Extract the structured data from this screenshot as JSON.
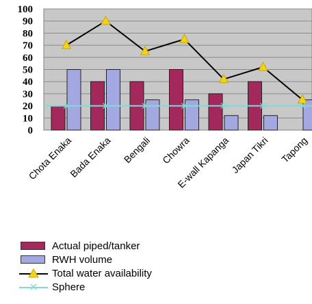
{
  "chart_data": {
    "type": "bar",
    "title": "",
    "xlabel": "",
    "ylabel": "",
    "categories": [
      "Chota Enaka",
      "Bada Enaka",
      "Bengali",
      "Chowra",
      "E-wall Kapanga",
      "Japan Tikri",
      "Tapong"
    ],
    "ylim": [
      0,
      100
    ],
    "yticks": [
      0,
      10,
      20,
      30,
      40,
      50,
      60,
      70,
      80,
      90,
      100
    ],
    "grid": true,
    "legend_position": "bottom-left",
    "series": [
      {
        "name": "Actual piped/tanker",
        "kind": "bar",
        "color": "#a3285c",
        "values": [
          20,
          40,
          40,
          50,
          30,
          40,
          null
        ]
      },
      {
        "name": "RWH volume",
        "kind": "bar",
        "color": "#a4a8e0",
        "values": [
          50,
          50,
          25,
          25,
          12,
          12,
          25
        ]
      },
      {
        "name": "Total water availability",
        "kind": "line",
        "color": "#000000",
        "marker_color": "#f2d21a",
        "marker": "triangle",
        "values": [
          70,
          90,
          65,
          75,
          42,
          52,
          25
        ]
      },
      {
        "name": "Sphere",
        "kind": "line",
        "color": "#7fdada",
        "marker": "x",
        "values": [
          20,
          20,
          20,
          20,
          20,
          20,
          20
        ]
      }
    ]
  }
}
